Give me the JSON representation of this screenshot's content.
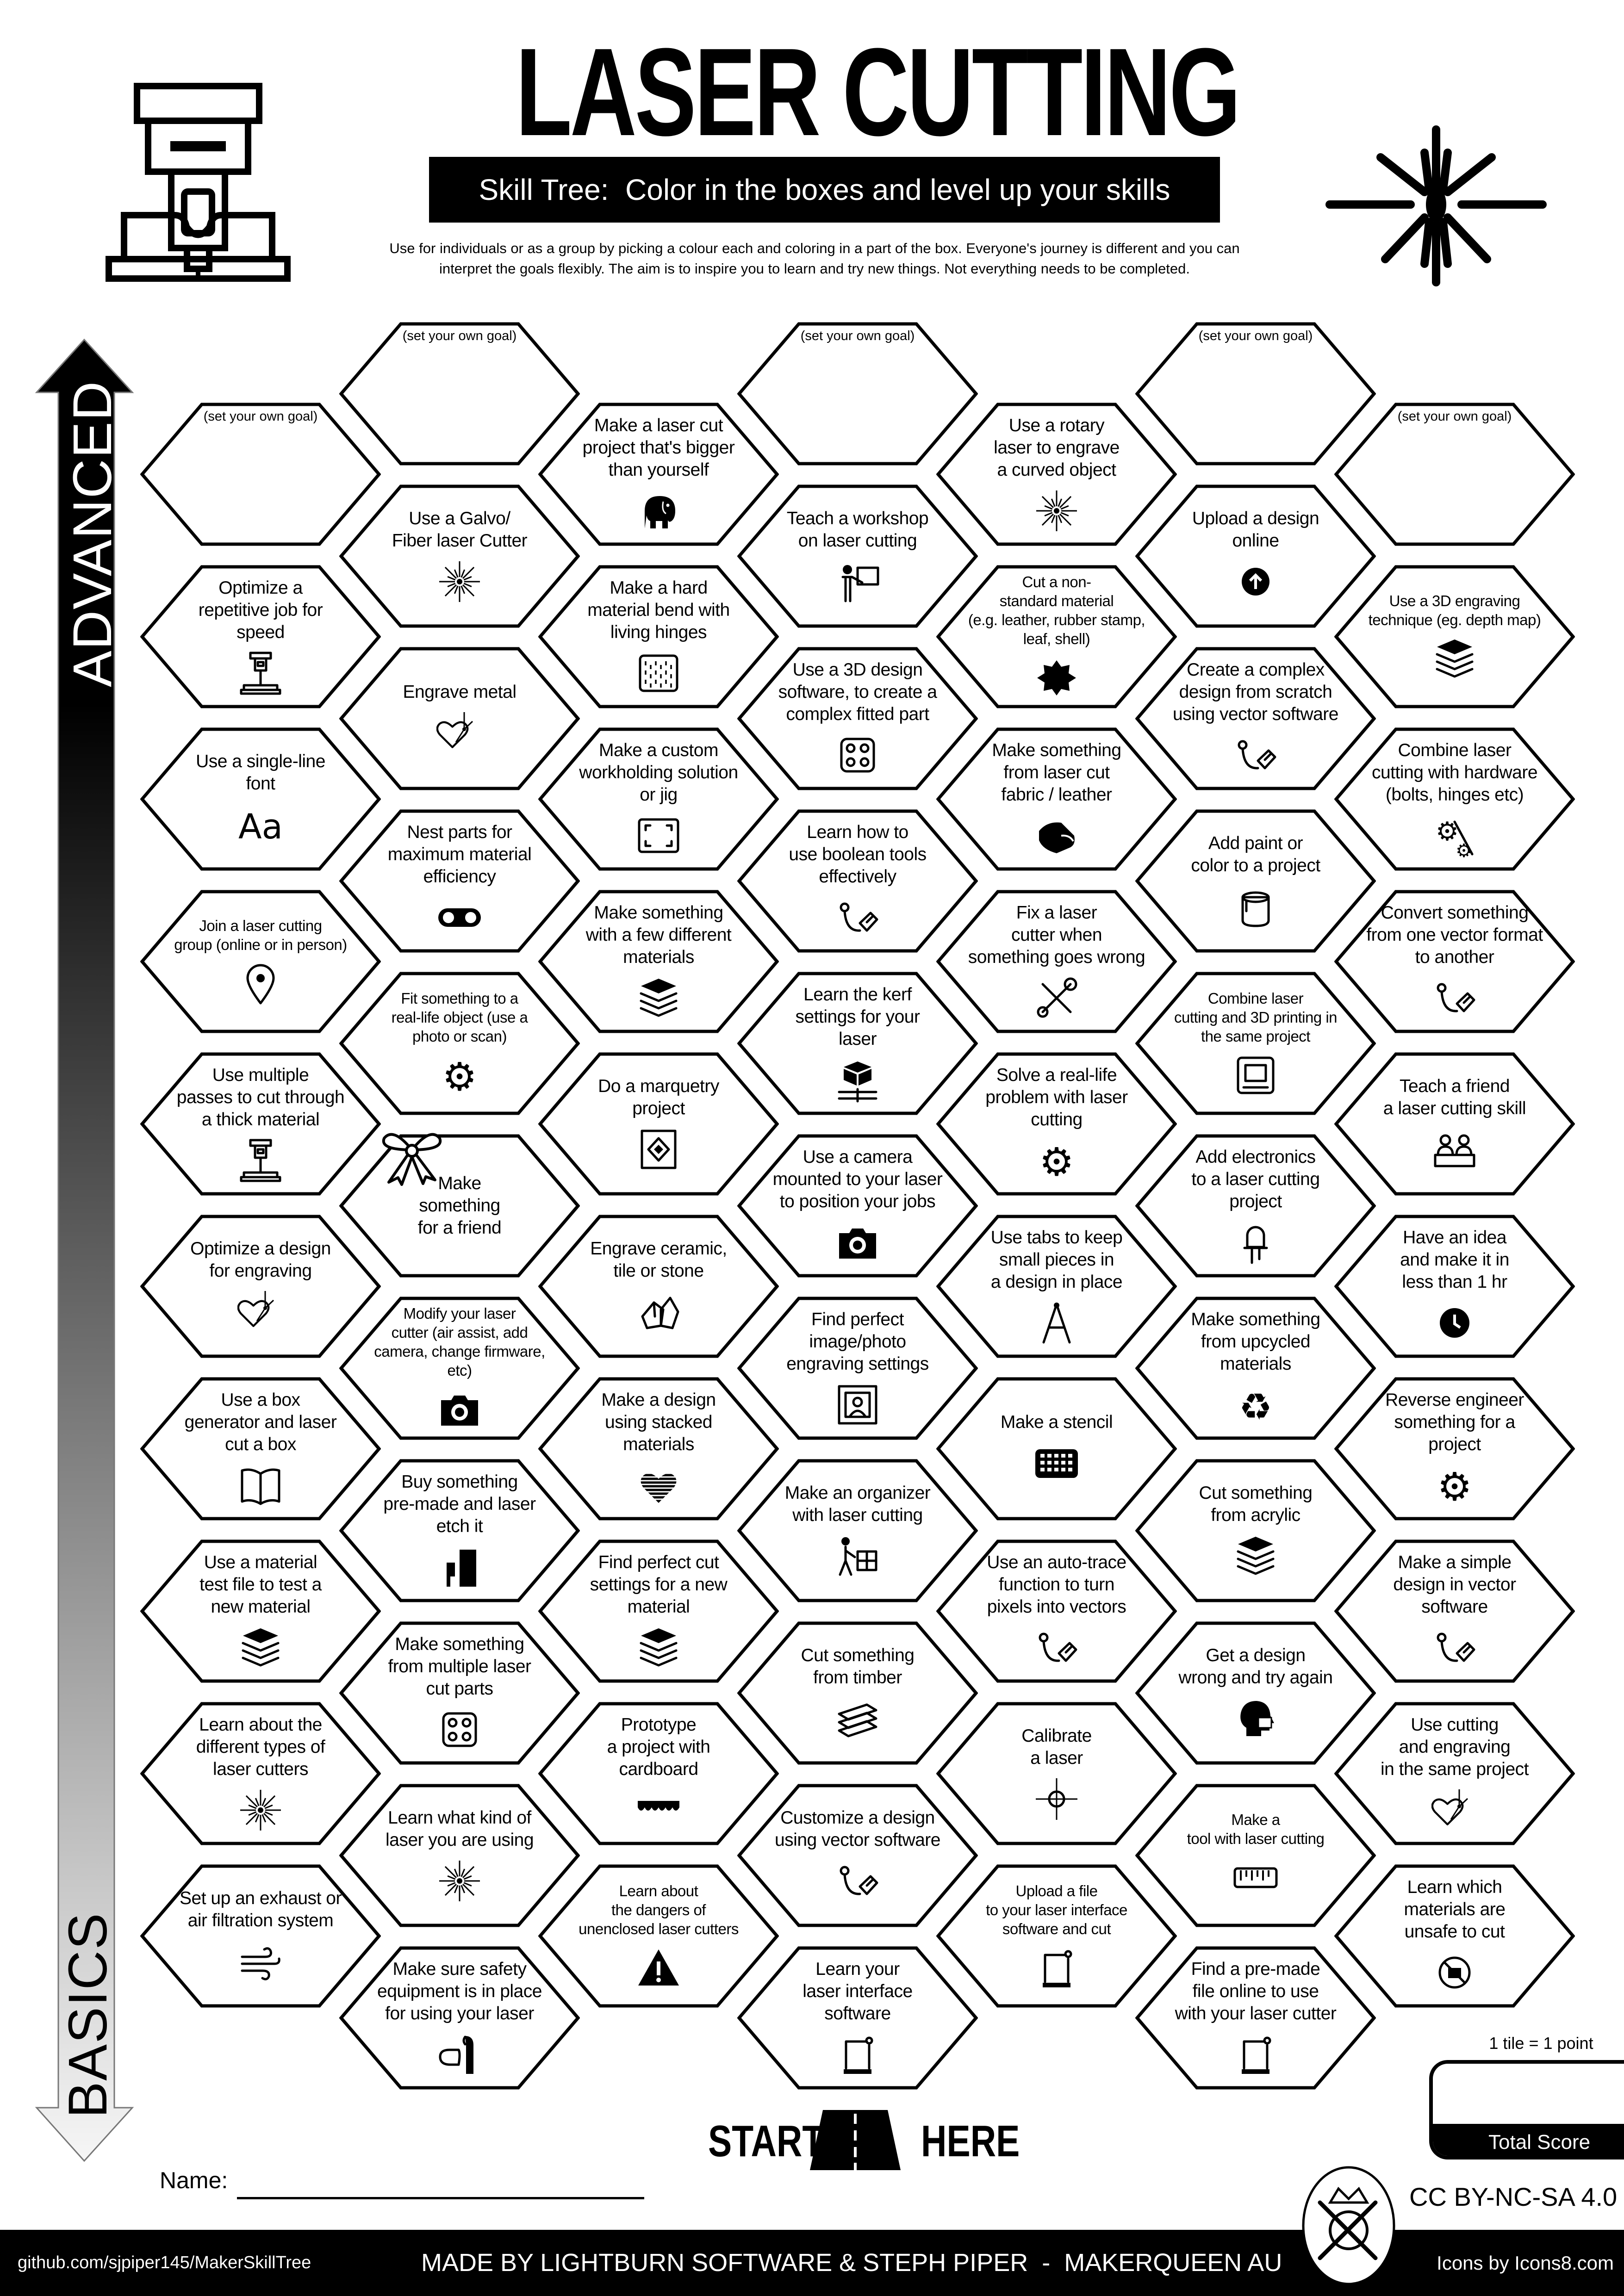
{
  "header": {
    "title": "LASER CUTTING",
    "subtitle": "Skill Tree:  Color in the boxes and level up your skills",
    "description": "Use for individuals or as a group by picking a colour each and coloring in a part of the box.  Everyone's journey is different and you can\ninterpret the goals flexibly.  The aim is to inspire you to learn and try new things. Not everything needs to be completed.",
    "left_icon": "laser-engraver-icon",
    "right_icon": "laser-burst-icon"
  },
  "progress_arrow": {
    "top_label": "ADVANCED",
    "bottom_label": "BASICS"
  },
  "grid": {
    "columns": [
      [
        {
          "type": "goal",
          "text": "(set your own goal)",
          "icon": ""
        },
        {
          "text": "Optimize a\nrepetitive job for\nspeed",
          "icon": "laser-head"
        },
        {
          "text": "Use a single-line\nfont",
          "icon": "font-aa"
        },
        {
          "text": "Join a laser cutting\ngroup (online or in person)",
          "icon": "location-pin"
        },
        {
          "text": "Use multiple\npasses to cut through\na thick material",
          "icon": "laser-head"
        },
        {
          "text": "Optimize a design\nfor engraving",
          "icon": "heart-laser"
        },
        {
          "text": "Use a box\ngenerator and laser\ncut a box",
          "icon": "book-box"
        },
        {
          "text": "Use a material\ntest file to test a\nnew material",
          "icon": "layers"
        },
        {
          "text": "Learn about the\ndifferent types of\nlaser cutters",
          "icon": "laser-burst"
        },
        {
          "text": "Set up an exhaust or\nair filtration system",
          "icon": "wind"
        }
      ],
      [
        {
          "type": "goal",
          "text": "(set your own goal)",
          "icon": ""
        },
        {
          "text": "Use a Galvo/\nFiber laser Cutter",
          "icon": "laser-burst"
        },
        {
          "text": "Engrave metal",
          "icon": "heart-laser"
        },
        {
          "text": "Nest parts for\nmaximum material\nefficiency",
          "icon": "conveyor"
        },
        {
          "text": "Fit something to a\nreal-life object (use a\nphoto or scan)",
          "icon": "gear-hand"
        },
        {
          "text": "Make\nsomething\nfor a friend",
          "icon": "gift-bow"
        },
        {
          "text": "Modify  your laser\ncutter (air assist, add\ncamera, change firmware,\netc)",
          "icon": "camera"
        },
        {
          "text": "Buy something\npre-made and laser\netch it",
          "icon": "knife"
        },
        {
          "text": "Make something\nfrom multiple laser\ncut parts",
          "icon": "board-dots"
        },
        {
          "text": "Learn what kind of\nlaser you are using",
          "icon": "laser-burst"
        },
        {
          "text": "Make sure safety\nequipment is in place\nfor using your laser",
          "icon": "goggles"
        }
      ],
      [
        {
          "text": "Make a laser cut\nproject  that's bigger\nthan yourself",
          "icon": "elephant"
        },
        {
          "text": "Make a hard\nmaterial bend with\nliving hinges",
          "icon": "hinge"
        },
        {
          "text": "Make a custom\nworkholding solution\nor jig",
          "icon": "frame-corners"
        },
        {
          "text": "Make something\nwith a few different\nmaterials",
          "icon": "layers"
        },
        {
          "text": "Do a marquetry\nproject",
          "icon": "marquetry"
        },
        {
          "text": "Engrave ceramic,\ntile or stone",
          "icon": "stones"
        },
        {
          "text": "Make a design\nusing stacked\nmaterials",
          "icon": "heart-stripes"
        },
        {
          "text": "Find perfect cut\nsettings for a new\nmaterial",
          "icon": "layers"
        },
        {
          "text": "Prototype\na project with\ncardboard",
          "icon": "awning"
        },
        {
          "text": "Learn about\nthe dangers of\nunenclosed laser cutters",
          "icon": "warning"
        }
      ],
      [
        {
          "type": "goal",
          "text": "(set your own goal)",
          "icon": ""
        },
        {
          "text": "Teach a workshop\non laser cutting",
          "icon": "teacher"
        },
        {
          "text": "Use a 3D design\nsoftware, to create a\ncomplex fitted part",
          "icon": "board-dots"
        },
        {
          "text": "Learn how to\nuse boolean tools\neffectively",
          "icon": "pen-tool"
        },
        {
          "text": "Learn the kerf\nsettings for your\nlaser",
          "icon": "kerf-box"
        },
        {
          "text": "Use a camera\nmounted to your laser\nto position your jobs",
          "icon": "camera"
        },
        {
          "text": "Find perfect\nimage/photo\nengraving settings",
          "icon": "photo-frame"
        },
        {
          "text": "Make an organizer\nwith laser cutting",
          "icon": "worker-boxes"
        },
        {
          "text": "Cut something\nfrom timber",
          "icon": "planks"
        },
        {
          "text": "Customize a design\nusing vector software",
          "icon": "pen-tool"
        },
        {
          "text": "Learn your\nlaser interface\nsoftware",
          "icon": "laptop"
        }
      ],
      [
        {
          "text": "Use a rotary\nlaser to engrave\na curved object",
          "icon": "laser-burst"
        },
        {
          "text": "Cut a non-\nstandard material\n(e.g. leather, rubber stamp,\nleaf, shell)",
          "icon": "leather-blob"
        },
        {
          "text": "Make something\nfrom laser cut\nfabric / leather",
          "icon": "fabric"
        },
        {
          "text": "Fix a laser\ncutter when\nsomething goes wrong",
          "icon": "tools"
        },
        {
          "text": "Solve a real-life\nproblem with laser\ncutting",
          "icon": "gear-hand"
        },
        {
          "text": "Use tabs to keep\nsmall pieces in\na design in place",
          "icon": "compass"
        },
        {
          "text": "Make a stencil",
          "icon": "stencil"
        },
        {
          "text": "Use an auto-trace\nfunction to turn\npixels into vectors",
          "icon": "pen-tool"
        },
        {
          "text": "Calibrate\na laser",
          "icon": "crosshair"
        },
        {
          "text": "Upload a file\nto your laser interface\nsoftware and cut",
          "icon": "laptop"
        }
      ],
      [
        {
          "type": "goal",
          "text": "(set your own goal)",
          "icon": ""
        },
        {
          "text": "Upload a design\nonline",
          "icon": "upload"
        },
        {
          "text": "Create a complex\ndesign from scratch\nusing vector software",
          "icon": "pen-tool"
        },
        {
          "text": "Add paint or\ncolor to a project",
          "icon": "paint"
        },
        {
          "text": "Combine laser\ncutting and 3D printing in\nthe same project",
          "icon": "printer"
        },
        {
          "text": "Add electronics\nto a laser cutting\nproject",
          "icon": "led"
        },
        {
          "text": "Make something\nfrom upcycled\nmaterials",
          "icon": "recycle"
        },
        {
          "text": "Cut something\nfrom acrylic",
          "icon": "layers"
        },
        {
          "text": "Get a design\nwrong and try again",
          "icon": "mask-face"
        },
        {
          "text": "Make a\ntool with laser cutting",
          "icon": "ruler"
        },
        {
          "text": "Find a pre-made\nfile online to use\nwith your laser cutter",
          "icon": "laptop"
        }
      ],
      [
        {
          "type": "goal",
          "text": "(set your own goal)",
          "icon": ""
        },
        {
          "text": "Use a 3D engraving\ntechnique (eg. depth map)",
          "icon": "layers"
        },
        {
          "text": "Combine laser\ncutting with hardware\n(bolts, hinges etc)",
          "icon": "hardware"
        },
        {
          "text": "Convert something\nfrom one vector format\nto another",
          "icon": "pen-tool"
        },
        {
          "text": "Teach a friend\na laser cutting skill",
          "icon": "team"
        },
        {
          "text": "Have an idea\nand make it in\nless than 1 hr",
          "icon": "clock"
        },
        {
          "text": "Reverse engineer\nsomething for a\nproject",
          "icon": "gear-hand"
        },
        {
          "text": "Make a simple\ndesign in vector\nsoftware",
          "icon": "pen-tool"
        },
        {
          "text": "Use cutting\nand engraving\nin the same project",
          "icon": "heart-laser"
        },
        {
          "text": "Learn which\nmaterials are\nunsafe to cut",
          "icon": "no-sign"
        }
      ]
    ]
  },
  "start": {
    "left": "START",
    "right": "HERE",
    "icon": "road-icon"
  },
  "name_field": {
    "label": "Name:",
    "value": ""
  },
  "score": {
    "note": "1 tile = 1 point",
    "label": "Total Score",
    "value": ""
  },
  "license": "CC BY-NC-SA 4.0",
  "footer": {
    "link": "github.com/sjpiper145/MakerSkillTree",
    "credit": "MADE BY LIGHTBURN SOFTWARE & STEPH PIPER  -  MAKERQUEEN AU",
    "icons_credit": "Icons by Icons8.com"
  }
}
